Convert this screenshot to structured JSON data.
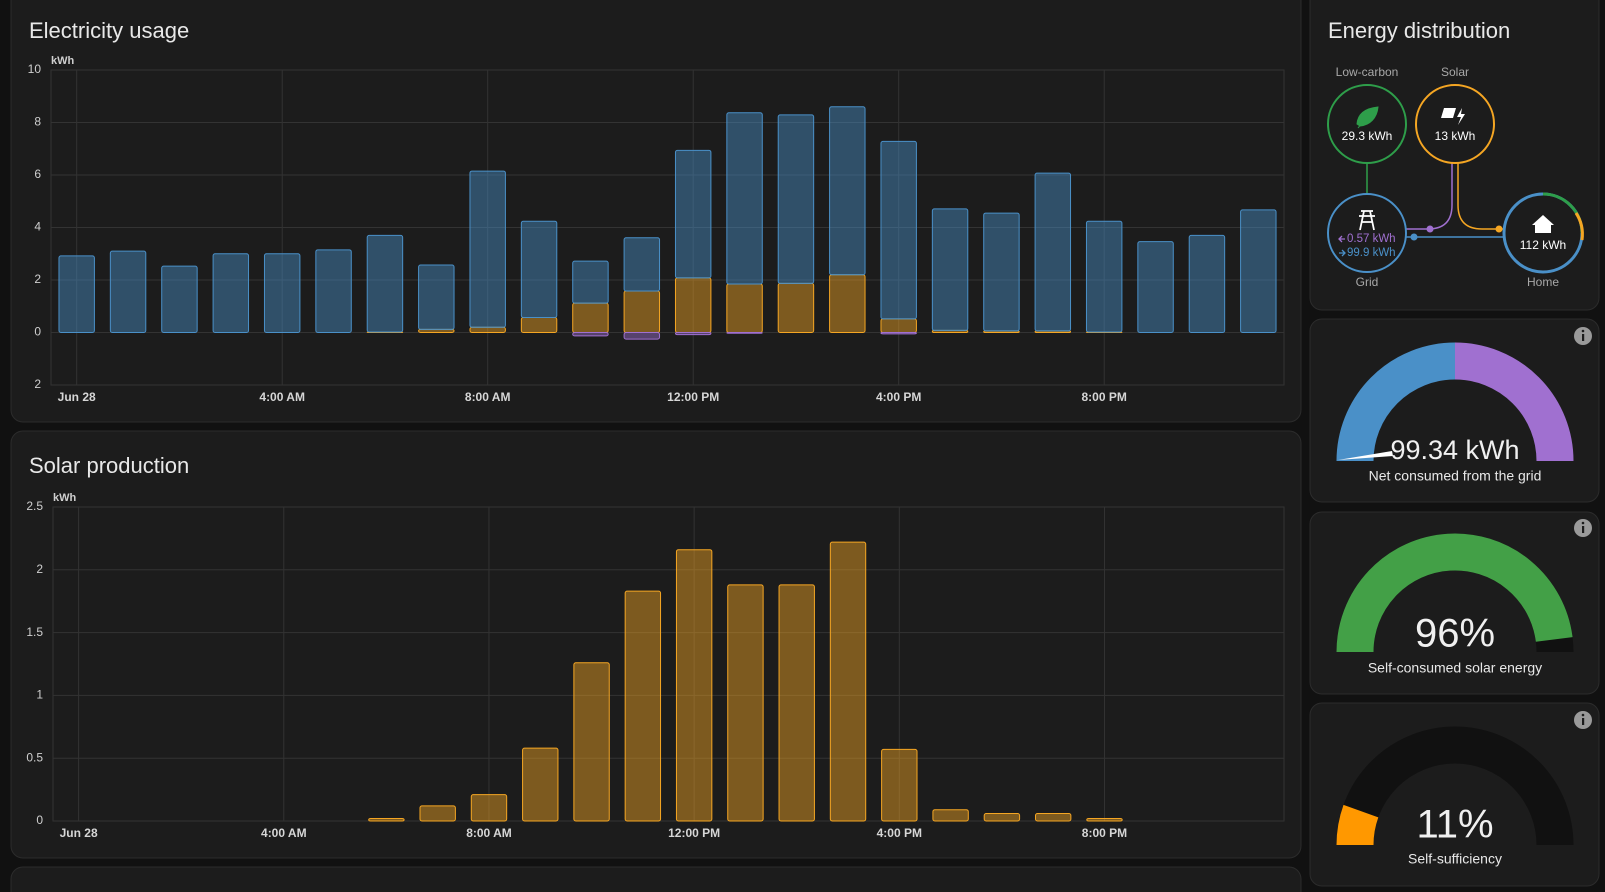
{
  "electricity_usage": {
    "type": "bar",
    "stacked": true,
    "title": "Electricity usage",
    "y_unit": "kWh",
    "categories": [
      "Jun 28",
      null,
      null,
      null,
      "4:00 AM",
      null,
      null,
      null,
      "8:00 AM",
      null,
      null,
      null,
      "12:00 PM",
      null,
      null,
      null,
      "4:00 PM",
      null,
      null,
      null,
      "8:00 PM",
      null,
      null,
      null
    ],
    "series": [
      {
        "color": "#f5a623",
        "values": [
          0,
          0,
          0,
          0,
          0,
          0,
          0.02,
          0.12,
          0.2,
          0.57,
          1.12,
          1.58,
          2.08,
          1.85,
          1.87,
          2.2,
          0.52,
          0.08,
          0.06,
          0.06,
          0.02,
          0,
          0,
          0
        ]
      },
      {
        "color": "#4a90c8",
        "values": [
          2.92,
          3.1,
          2.53,
          3.0,
          3.0,
          3.15,
          3.68,
          2.45,
          5.95,
          3.67,
          1.6,
          2.03,
          4.86,
          6.52,
          6.42,
          6.4,
          6.76,
          4.63,
          4.49,
          6.01,
          4.22,
          3.46,
          3.7,
          4.67
        ]
      },
      {
        "color": "#a070d0",
        "values": [
          0,
          0,
          0,
          0,
          0,
          0,
          0,
          0,
          0,
          0,
          -0.13,
          -0.25,
          -0.08,
          -0.03,
          0,
          0,
          -0.05,
          0,
          0,
          0,
          0,
          0,
          0,
          0
        ]
      }
    ],
    "ylim": [
      -2,
      10
    ],
    "yticks": [
      {
        "value": -2,
        "label": "2"
      },
      0,
      2,
      4,
      6,
      8,
      10
    ],
    "grid": true
  },
  "solar_production": {
    "type": "bar",
    "title": "Solar production",
    "y_unit": "kWh",
    "categories": [
      "Jun 28",
      null,
      null,
      null,
      "4:00 AM",
      null,
      null,
      null,
      "8:00 AM",
      null,
      null,
      null,
      "12:00 PM",
      null,
      null,
      null,
      "4:00 PM",
      null,
      null,
      null,
      "8:00 PM",
      null,
      null,
      null
    ],
    "values": [
      0,
      0,
      0,
      0,
      0,
      0,
      0.02,
      0.12,
      0.21,
      0.58,
      1.26,
      1.83,
      2.16,
      1.88,
      1.88,
      2.22,
      0.57,
      0.09,
      0.06,
      0.06,
      0.02,
      0,
      0,
      0
    ],
    "color": "#f5a623",
    "ylim": [
      0,
      2.5
    ],
    "yticks": [
      0,
      0.5,
      1,
      1.5,
      2,
      2.5
    ],
    "grid": true
  },
  "energy_distribution": {
    "title": "Energy distribution",
    "low_carbon": {
      "label": "Low-carbon",
      "value": "29.3 kWh"
    },
    "solar": {
      "label": "Solar",
      "value": "13 kWh"
    },
    "grid": {
      "label": "Grid",
      "returned": "0.57 kWh",
      "consumed": "99.9 kWh"
    },
    "home": {
      "label": "Home",
      "value": "112 kWh"
    }
  },
  "gauges": [
    {
      "value_label": "99.34 kWh",
      "label": "Net consumed from the grid"
    },
    {
      "value": 96,
      "value_label": "96%",
      "label": "Self-consumed solar energy",
      "color": "#43a047"
    },
    {
      "value": 11,
      "value_label": "11%",
      "label": "Self-sufficiency",
      "color": "#ff9800"
    }
  ]
}
